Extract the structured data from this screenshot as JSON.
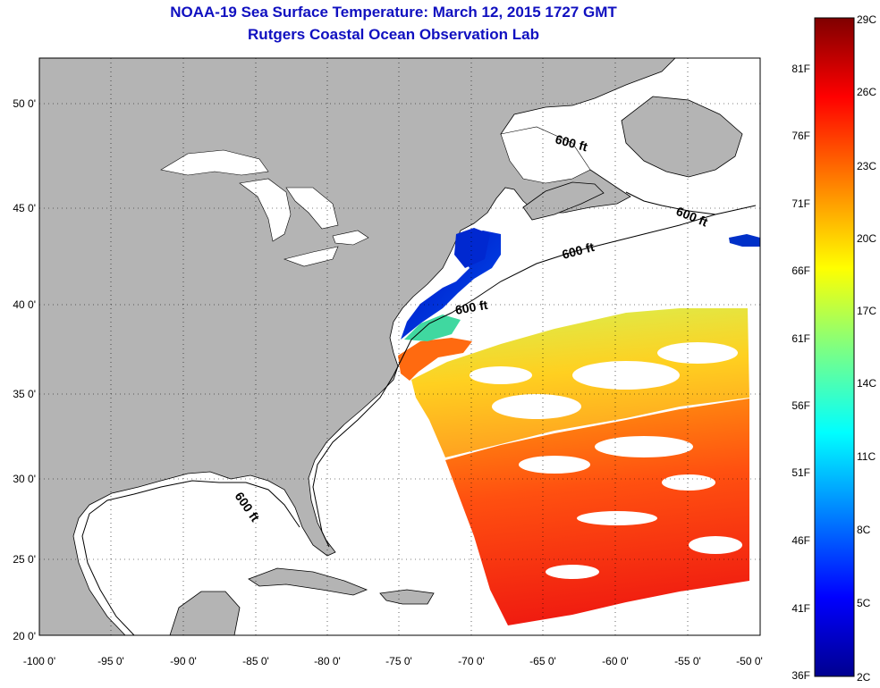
{
  "header": {
    "title": "NOAA-19 Sea Surface Temperature:  March 12, 2015 1727 GMT",
    "subtitle": "Rutgers Coastal Ocean Observation Lab"
  },
  "map": {
    "lon_range": [
      -100,
      -50
    ],
    "lat_range": [
      20,
      52
    ],
    "lon_ticks": [
      "-100 0'",
      "-95 0'",
      "-90 0'",
      "-85 0'",
      "-80 0'",
      "-75 0'",
      "-70 0'",
      "-65 0'",
      "-60 0'",
      "-55 0'",
      "-50 0'"
    ],
    "lat_ticks": [
      "20 0'",
      "25 0'",
      "30 0'",
      "35 0'",
      "40 0'",
      "45 0'",
      "50 0'"
    ],
    "land_color": "#b4b4b4",
    "ocean_color": "#ffffff",
    "isobath_label": "600 ft",
    "grid": "dotted"
  },
  "colorbar": {
    "celsius": [
      "29C",
      "26C",
      "23C",
      "20C",
      "17C",
      "14C",
      "11C",
      "8C",
      "5C",
      "2C"
    ],
    "fahrenheit": [
      "81F",
      "76F",
      "71F",
      "66F",
      "61F",
      "56F",
      "51F",
      "46F",
      "41F",
      "36F"
    ],
    "colors": [
      "#7f0000",
      "#ff0000",
      "#ff8000",
      "#ffff00",
      "#80ff80",
      "#00ffff",
      "#0080ff",
      "#0000ff",
      "#00008f"
    ]
  }
}
